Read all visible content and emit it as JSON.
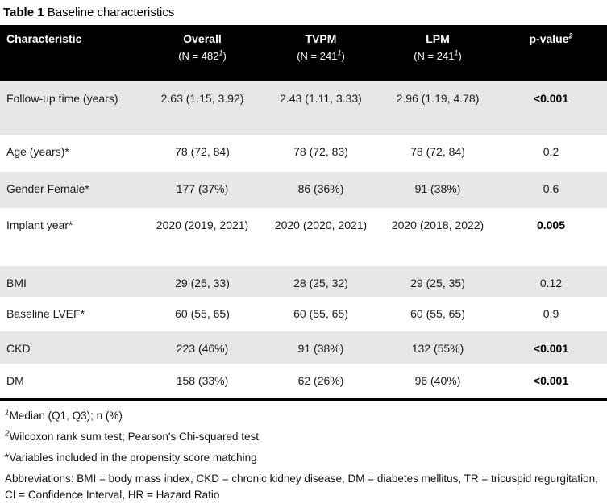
{
  "colors": {
    "header_bg": "#000000",
    "header_text": "#ffffff",
    "stripe": "#e7e7e7",
    "body_bg": "#ffffff"
  },
  "title": {
    "label": "Table 1",
    "text": "Baseline characteristics"
  },
  "table": {
    "header": {
      "characteristic": "Characteristic",
      "groups": [
        {
          "name": "Overall",
          "n": "(N = 482",
          "sup": "1",
          "close": ")"
        },
        {
          "name": "TVPM",
          "n": "(N = 241",
          "sup": "1",
          "close": ")"
        },
        {
          "name": "LPM",
          "n": "(N = 241",
          "sup": "1",
          "close": ")"
        }
      ],
      "pvalue": {
        "name": "p-value",
        "sup": "2"
      }
    },
    "rows": [
      {
        "label": "Follow-up time (years)",
        "overall": "2.63 (1.15, 3.92)",
        "tvpm": "2.43 (1.11, 3.33)",
        "lpm": "2.96 (1.19, 4.78)",
        "p": "<0.001",
        "p_bold": true
      },
      {
        "label": "Age (years)*",
        "overall": "78 (72, 84)",
        "tvpm": "78 (72, 83)",
        "lpm": "78 (72, 84)",
        "p": "0.2",
        "p_bold": false
      },
      {
        "label": "Gender Female*",
        "overall": "177 (37%)",
        "tvpm": "86 (36%)",
        "lpm": "91 (38%)",
        "p": "0.6",
        "p_bold": false
      },
      {
        "label": "Implant year*",
        "overall": "2020 (2019, 2021)",
        "tvpm": "2020 (2020, 2021)",
        "lpm": "2020 (2018, 2022)",
        "p": "0.005",
        "p_bold": true
      },
      {
        "label": "BMI",
        "overall": "29 (25, 33)",
        "tvpm": "28 (25, 32)",
        "lpm": "29 (25, 35)",
        "p": "0.12",
        "p_bold": false
      },
      {
        "label": "Baseline LVEF*",
        "overall": "60 (55, 65)",
        "tvpm": "60 (55, 65)",
        "lpm": "60 (55, 65)",
        "p": "0.9",
        "p_bold": false
      },
      {
        "label": "CKD",
        "overall": "223 (46%)",
        "tvpm": "91 (38%)",
        "lpm": "132 (55%)",
        "p": "<0.001",
        "p_bold": true
      },
      {
        "label": "DM",
        "overall": "158 (33%)",
        "tvpm": "62 (26%)",
        "lpm": "96 (40%)",
        "p": "<0.001",
        "p_bold": true
      }
    ]
  },
  "footnotes": [
    {
      "sup": "1",
      "text": "Median (Q1, Q3); n (%)"
    },
    {
      "sup": "2",
      "text": "Wilcoxon rank sum test; Pearson's Chi-squared test"
    },
    {
      "sup": "",
      "text": "*Variables included in the propensity score matching"
    },
    {
      "sup": "",
      "text": "Abbreviations: BMI = body mass index, CKD = chronic kidney disease, DM = diabetes mellitus, TR = tricuspid regurgitation, CI = Confidence Interval, HR = Hazard Ratio"
    }
  ]
}
